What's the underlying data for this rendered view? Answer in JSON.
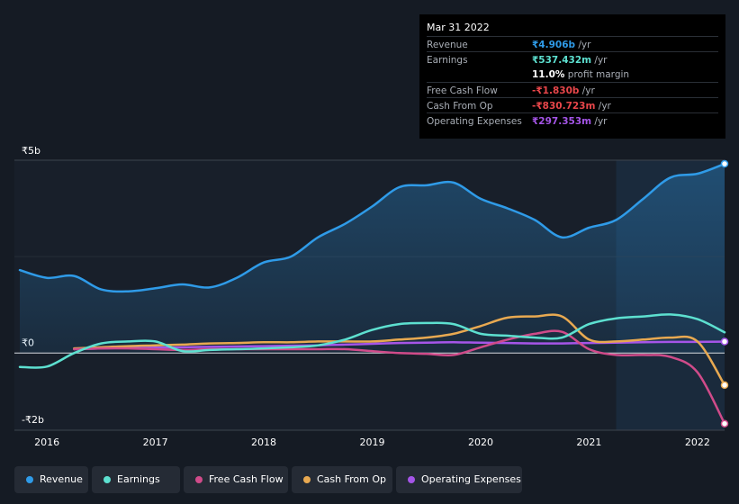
{
  "chart_data": {
    "type": "line",
    "title": "",
    "xlabel": "",
    "ylabel": "",
    "y_unit": "₹ billions",
    "ylim": [
      -2.0,
      5.0
    ],
    "y_ticks": [
      {
        "value": 5.0,
        "label": "₹5b"
      },
      {
        "value": 0.0,
        "label": "₹0"
      },
      {
        "value": -2.0,
        "label": "-₹2b"
      }
    ],
    "xlim": [
      2015.7,
      2022.25
    ],
    "x_ticks": [
      {
        "value": 2016,
        "label": "2016"
      },
      {
        "value": 2017,
        "label": "2017"
      },
      {
        "value": 2018,
        "label": "2018"
      },
      {
        "value": 2019,
        "label": "2019"
      },
      {
        "value": 2020,
        "label": "2020"
      },
      {
        "value": 2021,
        "label": "2021"
      },
      {
        "value": 2022,
        "label": "2022"
      }
    ],
    "highlight_start": 2021.25,
    "series": [
      {
        "name": "Revenue",
        "color": "#2f9be8",
        "filled": true,
        "end_marker": true,
        "x": [
          2015.75,
          2016.0,
          2016.25,
          2016.5,
          2016.75,
          2017.0,
          2017.25,
          2017.5,
          2017.75,
          2018.0,
          2018.25,
          2018.5,
          2018.75,
          2019.0,
          2019.25,
          2019.5,
          2019.75,
          2020.0,
          2020.25,
          2020.5,
          2020.75,
          2021.0,
          2021.25,
          2021.5,
          2021.75,
          2022.0,
          2022.25
        ],
        "y": [
          2.15,
          1.95,
          2.0,
          1.65,
          1.6,
          1.68,
          1.78,
          1.7,
          1.95,
          2.35,
          2.5,
          3.0,
          3.35,
          3.8,
          4.3,
          4.35,
          4.42,
          4.0,
          3.75,
          3.45,
          3.0,
          3.25,
          3.45,
          4.0,
          4.55,
          4.65,
          4.906
        ]
      },
      {
        "name": "Earnings",
        "color": "#5de0d0",
        "filled": false,
        "end_marker": false,
        "x": [
          2015.75,
          2016.0,
          2016.25,
          2016.5,
          2016.75,
          2017.0,
          2017.25,
          2017.5,
          2017.75,
          2018.0,
          2018.25,
          2018.5,
          2018.75,
          2019.0,
          2019.25,
          2019.5,
          2019.75,
          2020.0,
          2020.25,
          2020.5,
          2020.75,
          2021.0,
          2021.25,
          2021.5,
          2021.75,
          2022.0,
          2022.25
        ],
        "y": [
          -0.36,
          -0.35,
          0.0,
          0.25,
          0.3,
          0.3,
          0.05,
          0.08,
          0.1,
          0.12,
          0.15,
          0.2,
          0.35,
          0.6,
          0.75,
          0.78,
          0.75,
          0.5,
          0.45,
          0.4,
          0.4,
          0.75,
          0.9,
          0.95,
          1.0,
          0.88,
          0.537
        ]
      },
      {
        "name": "Free Cash Flow",
        "color": "#d04b8a",
        "filled": false,
        "end_marker": true,
        "x": [
          2016.25,
          2016.5,
          2016.75,
          2017.0,
          2017.25,
          2017.5,
          2017.75,
          2018.0,
          2018.25,
          2018.5,
          2018.75,
          2019.0,
          2019.25,
          2019.5,
          2019.75,
          2020.0,
          2020.25,
          2020.5,
          2020.75,
          2021.0,
          2021.25,
          2021.5,
          2021.75,
          2022.0,
          2022.25
        ],
        "y": [
          0.1,
          0.12,
          0.12,
          0.1,
          0.08,
          0.1,
          0.1,
          0.1,
          0.1,
          0.1,
          0.1,
          0.05,
          0.0,
          -0.02,
          -0.05,
          0.15,
          0.35,
          0.5,
          0.55,
          0.1,
          -0.05,
          -0.05,
          -0.1,
          -0.5,
          -1.83
        ]
      },
      {
        "name": "Cash From Op",
        "color": "#e8a951",
        "filled": false,
        "end_marker": true,
        "x": [
          2016.25,
          2016.5,
          2016.75,
          2017.0,
          2017.25,
          2017.5,
          2017.75,
          2018.0,
          2018.25,
          2018.5,
          2018.75,
          2019.0,
          2019.25,
          2019.5,
          2019.75,
          2020.0,
          2020.25,
          2020.5,
          2020.75,
          2021.0,
          2021.25,
          2021.5,
          2021.75,
          2022.0,
          2022.25
        ],
        "y": [
          0.12,
          0.15,
          0.18,
          0.2,
          0.22,
          0.25,
          0.26,
          0.28,
          0.28,
          0.3,
          0.3,
          0.3,
          0.35,
          0.4,
          0.5,
          0.7,
          0.92,
          0.95,
          0.95,
          0.35,
          0.3,
          0.35,
          0.4,
          0.3,
          -0.831
        ]
      },
      {
        "name": "Operating Expenses",
        "color": "#a555e8",
        "filled": false,
        "end_marker": true,
        "x": [
          2016.25,
          2016.5,
          2016.75,
          2017.0,
          2017.25,
          2017.5,
          2017.75,
          2018.0,
          2018.25,
          2018.5,
          2018.75,
          2019.0,
          2019.25,
          2019.5,
          2019.75,
          2020.0,
          2020.25,
          2020.5,
          2020.75,
          2021.0,
          2021.25,
          2021.5,
          2021.75,
          2022.0,
          2022.25
        ],
        "y": [
          0.1,
          0.12,
          0.13,
          0.14,
          0.15,
          0.16,
          0.17,
          0.18,
          0.19,
          0.2,
          0.22,
          0.24,
          0.26,
          0.27,
          0.28,
          0.27,
          0.26,
          0.25,
          0.25,
          0.26,
          0.27,
          0.28,
          0.29,
          0.29,
          0.297
        ]
      }
    ]
  },
  "tooltip": {
    "date": "Mar 31 2022",
    "rows": [
      {
        "label": "Revenue",
        "value": "₹4.906b",
        "unit": " /yr",
        "color": "#2f9be8"
      },
      {
        "label": "Earnings",
        "value": "₹537.432m",
        "unit": " /yr",
        "color": "#5de0d0"
      },
      {
        "label": "",
        "value": "11.0%",
        "unit": " profit margin",
        "color": "#ffffff"
      },
      {
        "label": "Free Cash Flow",
        "value": "-₹1.830b",
        "unit": " /yr",
        "color": "#e8464a"
      },
      {
        "label": "Cash From Op",
        "value": "-₹830.723m",
        "unit": " /yr",
        "color": "#e8464a"
      },
      {
        "label": "Operating Expenses",
        "value": "₹297.353m",
        "unit": " /yr",
        "color": "#a555e8"
      }
    ]
  },
  "legend": [
    {
      "label": "Revenue",
      "color": "#2f9be8"
    },
    {
      "label": "Earnings",
      "color": "#5de0d0"
    },
    {
      "label": "Free Cash Flow",
      "color": "#d04b8a"
    },
    {
      "label": "Cash From Op",
      "color": "#e8a951"
    },
    {
      "label": "Operating Expenses",
      "color": "#a555e8"
    }
  ]
}
